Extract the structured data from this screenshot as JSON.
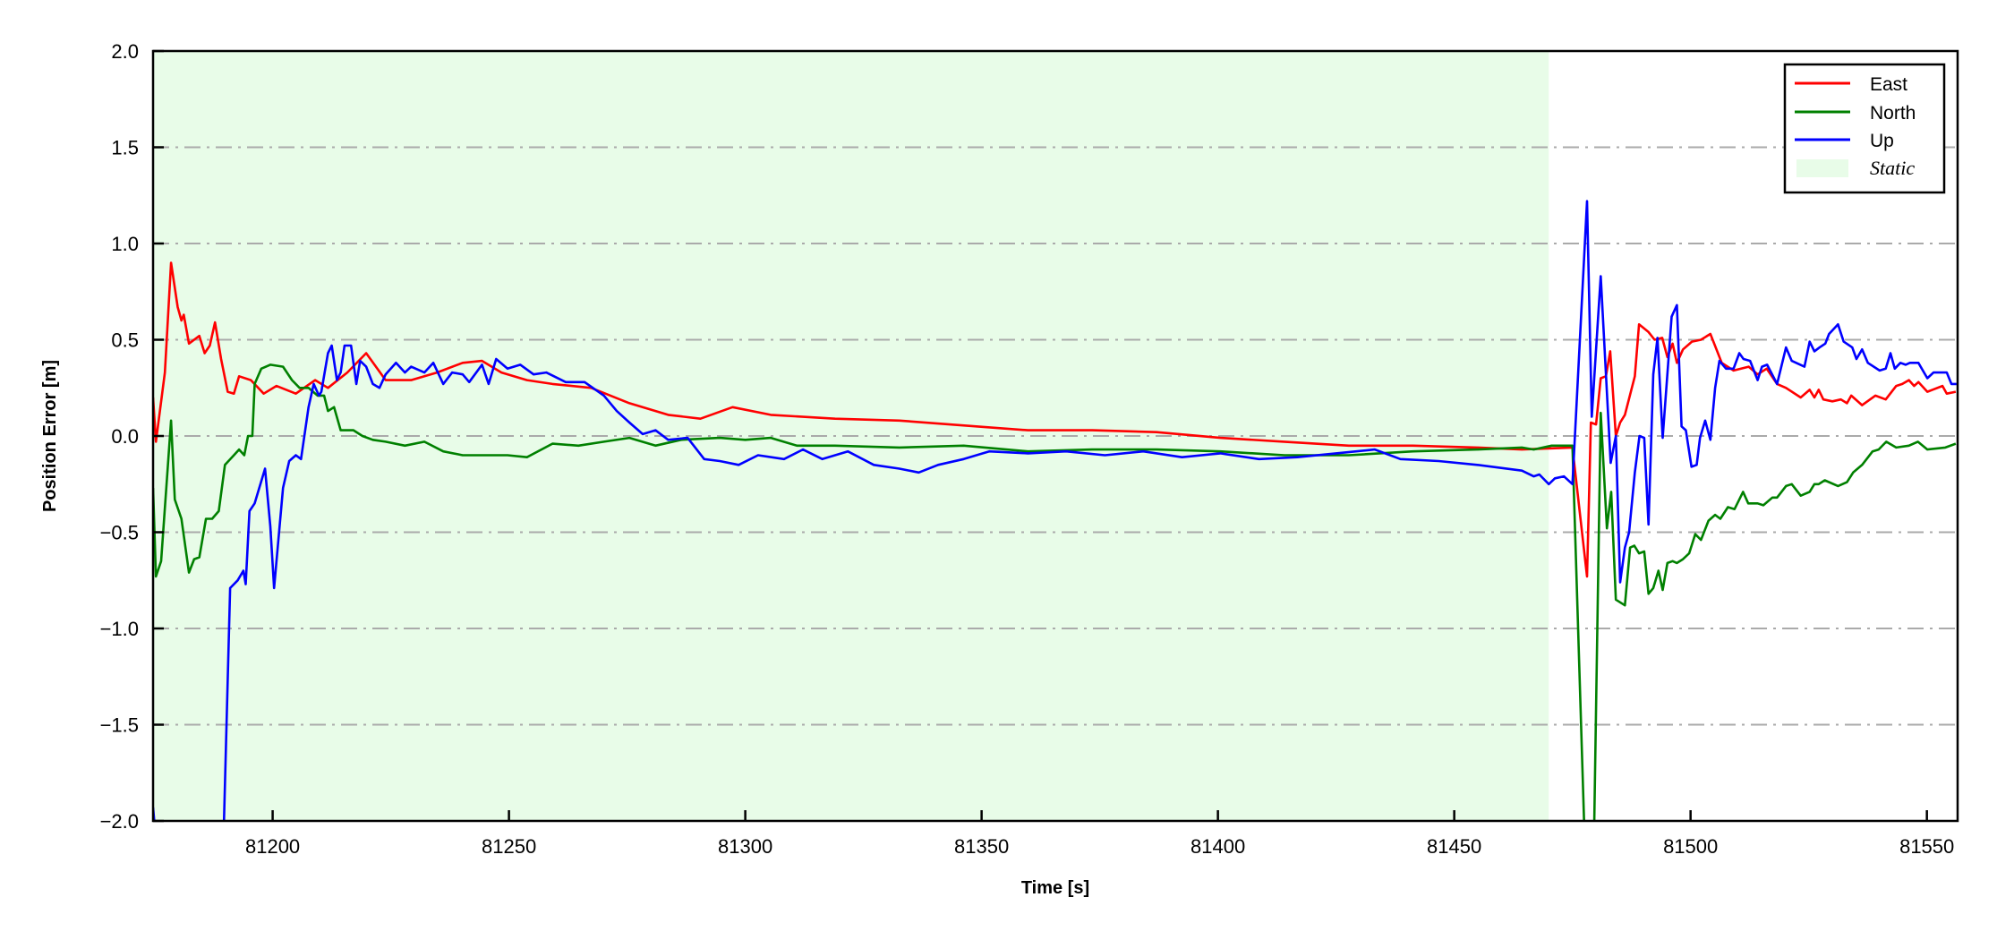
{
  "chart_data": {
    "type": "line",
    "title": "",
    "xlabel": "Time [s]",
    "ylabel": "Position Error [m]",
    "xlim": [
      81174.7,
      81556.5
    ],
    "ylim": [
      -2.0,
      2.0
    ],
    "xticks": [
      81200,
      81250,
      81300,
      81350,
      81400,
      81450,
      81500,
      81550
    ],
    "xtick_labels": [
      "81200",
      "81250",
      "81300",
      "81350",
      "81400",
      "81450",
      "81500",
      "81550"
    ],
    "yticks": [
      -2.0,
      -1.5,
      -1.0,
      -0.5,
      0.0,
      0.5,
      1.0,
      1.5,
      2.0
    ],
    "ytick_labels": [
      "−2.0",
      "−1.5",
      "−1.0",
      "−0.5",
      "0.0",
      "0.5",
      "1.0",
      "1.5",
      "2.0"
    ],
    "grid": "horizontal dash-dot",
    "legend_position": "top-right",
    "shaded_regions": [
      {
        "name": "Static",
        "x": [
          81174.7,
          81470
        ],
        "color": "#e8fce8"
      }
    ],
    "series": [
      {
        "name": "East",
        "color": "#ff0000",
        "x": [
          81174.7,
          81175.3,
          81177.2,
          81178.5,
          81179.9,
          81180.7,
          81181.2,
          81182.3,
          81184.5,
          81185.6,
          81186.7,
          81187.8,
          81189.1,
          81190.5,
          81191.8,
          81192.9,
          81195.4,
          81198.1,
          81200.8,
          81204.9,
          81209,
          81211.7,
          81215.8,
          81219.8,
          81223.9,
          81229.3,
          81234.8,
          81240.2,
          81244.3,
          81248.4,
          81253.8,
          81259.2,
          81267.4,
          81275.5,
          81283.7,
          81290.5,
          81297.3,
          81305.4,
          81319,
          81332.6,
          81348.9,
          81359.8,
          81373.4,
          81387,
          81400.5,
          81414,
          81427.7,
          81441.3,
          81454.9,
          81464.3,
          81475,
          81478.1,
          81478.9,
          81480,
          81481,
          81482.1,
          81483,
          81484.2,
          81485.1,
          81486.1,
          81488.2,
          81489.1,
          81491.1,
          81492.4,
          81494,
          81495.1,
          81496.2,
          81497.1,
          81498.4,
          81500.3,
          81502.2,
          81504.2,
          81506.6,
          81509.1,
          81512.3,
          81514.2,
          81516.1,
          81518.3,
          81520.2,
          81523.3,
          81525.2,
          81526.2,
          81527.1,
          81528.1,
          81530,
          81531.8,
          81533.1,
          81534,
          81536.3,
          81539.1,
          81541.3,
          81543.5,
          81544.8,
          81546.2,
          81547.3,
          81548.2,
          81550.1,
          81553.3,
          81554.2,
          81556.1
        ],
        "y": [
          0.2,
          -0.03,
          0.33,
          0.9,
          0.67,
          0.6,
          0.63,
          0.48,
          0.52,
          0.43,
          0.47,
          0.59,
          0.4,
          0.23,
          0.22,
          0.31,
          0.29,
          0.22,
          0.26,
          0.22,
          0.29,
          0.25,
          0.33,
          0.43,
          0.29,
          0.29,
          0.33,
          0.38,
          0.39,
          0.33,
          0.29,
          0.27,
          0.25,
          0.17,
          0.11,
          0.09,
          0.15,
          0.11,
          0.09,
          0.08,
          0.05,
          0.03,
          0.03,
          0.02,
          -0.01,
          -0.03,
          -0.05,
          -0.05,
          -0.06,
          -0.07,
          -0.06,
          -0.73,
          0.07,
          0.06,
          0.3,
          0.31,
          0.44,
          0.0,
          0.07,
          0.11,
          0.31,
          0.58,
          0.54,
          0.5,
          0.51,
          0.41,
          0.48,
          0.38,
          0.45,
          0.49,
          0.5,
          0.53,
          0.38,
          0.34,
          0.36,
          0.32,
          0.35,
          0.27,
          0.25,
          0.2,
          0.24,
          0.2,
          0.24,
          0.19,
          0.18,
          0.19,
          0.17,
          0.21,
          0.16,
          0.21,
          0.19,
          0.26,
          0.27,
          0.29,
          0.26,
          0.28,
          0.23,
          0.26,
          0.22,
          0.23
        ]
      },
      {
        "name": "North",
        "color": "#008000",
        "x": [
          81174.7,
          81175.3,
          81176.4,
          81178.5,
          81179.3,
          81180.7,
          81182.3,
          81183.4,
          81184.5,
          81185.9,
          81187.2,
          81188.6,
          81189.9,
          81191.8,
          81192.9,
          81194,
          81194.8,
          81195.7,
          81196.2,
          81197.6,
          81199.5,
          81202.2,
          81204.1,
          81205.7,
          81207.6,
          81209.5,
          81210.9,
          81211.7,
          81213,
          81214.4,
          81217.1,
          81219,
          81221.2,
          81223.9,
          81228,
          81232.1,
          81236.1,
          81240.2,
          81245.7,
          81249.7,
          81253.8,
          81259.2,
          81264.7,
          81270.1,
          81275.5,
          81281,
          81286.4,
          81294.6,
          81300,
          81305.4,
          81310.9,
          81319,
          81332.6,
          81346.2,
          81359.8,
          81373.4,
          81387,
          81400.5,
          81414.1,
          81427.7,
          81441.3,
          81454.9,
          81464.3,
          81466.8,
          81470.6,
          81475,
          81478.1,
          81479.3,
          81481,
          81482.3,
          81483.2,
          81484.2,
          81486.1,
          81487.2,
          81488.1,
          81489.1,
          81490.2,
          81491.1,
          81492.1,
          81493.2,
          81494.1,
          81495.1,
          81496.2,
          81497.1,
          81498.4,
          81499.7,
          81501,
          81502.2,
          81503.8,
          81505.2,
          81506.3,
          81507.9,
          81509.3,
          81511.1,
          81512.2,
          81514.2,
          81515.4,
          81517.3,
          81518.3,
          81520.2,
          81521.4,
          81523.3,
          81525.2,
          81526.2,
          81527.1,
          81528.4,
          81531.2,
          81533.1,
          81534.4,
          81536.3,
          81538.5,
          81539.8,
          81541.4,
          81543.5,
          81546.2,
          81548.1,
          81550.1,
          81553.9,
          81556.1
        ],
        "y": [
          -0.27,
          -0.73,
          -0.65,
          0.08,
          -0.33,
          -0.43,
          -0.71,
          -0.64,
          -0.63,
          -0.43,
          -0.43,
          -0.39,
          -0.15,
          -0.1,
          -0.07,
          -0.1,
          0.0,
          0.0,
          0.27,
          0.35,
          0.37,
          0.36,
          0.29,
          0.25,
          0.25,
          0.21,
          0.21,
          0.13,
          0.15,
          0.03,
          0.03,
          0.0,
          -0.02,
          -0.03,
          -0.05,
          -0.03,
          -0.08,
          -0.1,
          -0.1,
          -0.1,
          -0.11,
          -0.04,
          -0.05,
          -0.03,
          -0.01,
          -0.05,
          -0.02,
          -0.01,
          -0.02,
          -0.01,
          -0.05,
          -0.05,
          -0.06,
          -0.05,
          -0.08,
          -0.07,
          -0.07,
          -0.08,
          -0.1,
          -0.1,
          -0.08,
          -0.07,
          -0.06,
          -0.07,
          -0.05,
          -0.05,
          -2.5,
          -2.5,
          0.12,
          -0.48,
          -0.29,
          -0.85,
          -0.88,
          -0.58,
          -0.57,
          -0.61,
          -0.6,
          -0.82,
          -0.79,
          -0.7,
          -0.8,
          -0.66,
          -0.65,
          -0.66,
          -0.64,
          -0.61,
          -0.51,
          -0.54,
          -0.44,
          -0.41,
          -0.43,
          -0.37,
          -0.38,
          -0.29,
          -0.35,
          -0.35,
          -0.36,
          -0.32,
          -0.32,
          -0.26,
          -0.25,
          -0.31,
          -0.29,
          -0.25,
          -0.25,
          -0.23,
          -0.26,
          -0.24,
          -0.19,
          -0.15,
          -0.08,
          -0.07,
          -0.03,
          -0.06,
          -0.05,
          -0.03,
          -0.07,
          -0.06,
          -0.04
        ]
      },
      {
        "name": "Up",
        "color": "#0000ff",
        "x": [
          81174.7,
          81175.5,
          81189.5,
          81191,
          81192.6,
          81193.8,
          81194.3,
          81195.1,
          81196.2,
          81198.4,
          81199.5,
          81200.3,
          81202.2,
          81203.5,
          81204.9,
          81206,
          81207.6,
          81208.7,
          81209.8,
          81210.3,
          81211.7,
          81212.5,
          81213.6,
          81214.4,
          81215.2,
          81216.6,
          81217.7,
          81218.5,
          81219.8,
          81221.2,
          81222.6,
          81223.9,
          81226.1,
          81228,
          81229.3,
          81232.1,
          81234,
          81236.1,
          81238,
          81240.2,
          81241.6,
          81244.3,
          81245.7,
          81247.3,
          81249.7,
          81252.4,
          81255.2,
          81257.9,
          81262,
          81266,
          81270.1,
          81272.8,
          81275.5,
          81278.3,
          81281,
          81283.7,
          81287.8,
          81291.3,
          81294.6,
          81298.6,
          81302.7,
          81308.2,
          81312.2,
          81316.3,
          81321.7,
          81327.2,
          81332.6,
          81336.7,
          81340.8,
          81346.2,
          81351.6,
          81359.8,
          81367.9,
          81376.1,
          81384.2,
          81392.4,
          81400.5,
          81408.7,
          81416.8,
          81425,
          81433.2,
          81438.6,
          81446.7,
          81454.9,
          81464.3,
          81466.8,
          81468,
          81470,
          81471.3,
          81473.2,
          81475,
          81478.1,
          81479.1,
          81481,
          81483.1,
          81484.2,
          81485.1,
          81486.1,
          81487,
          81488.2,
          81489.2,
          81490.2,
          81491.1,
          81492.1,
          81493,
          81494.1,
          81496,
          81497.1,
          81498.1,
          81499,
          81500.2,
          81501.3,
          81502,
          81503.1,
          81504.2,
          81505.2,
          81506.1,
          81507.5,
          81509.1,
          81510.3,
          81511.2,
          81512.6,
          81514.2,
          81515.1,
          81516.2,
          81518.3,
          81520.2,
          81521.4,
          81524.1,
          81525.2,
          81526.2,
          81527.3,
          81528.5,
          81529.3,
          81531.2,
          81532.4,
          81534.2,
          81535.1,
          81536.3,
          81537.5,
          81540,
          81541.3,
          81542.3,
          81543.2,
          81544.4,
          81545.5,
          81546.4,
          81548.2,
          81550.1,
          81551.4,
          81554.2,
          81555.2,
          81556.3
        ],
        "y": [
          -1.93,
          -2.15,
          -2.2,
          -0.79,
          -0.75,
          -0.7,
          -0.77,
          -0.39,
          -0.35,
          -0.17,
          -0.47,
          -0.79,
          -0.27,
          -0.13,
          -0.1,
          -0.12,
          0.15,
          0.27,
          0.21,
          0.23,
          0.43,
          0.47,
          0.29,
          0.33,
          0.47,
          0.47,
          0.27,
          0.39,
          0.36,
          0.27,
          0.25,
          0.32,
          0.38,
          0.33,
          0.36,
          0.33,
          0.38,
          0.27,
          0.33,
          0.32,
          0.28,
          0.37,
          0.27,
          0.4,
          0.35,
          0.37,
          0.32,
          0.33,
          0.28,
          0.28,
          0.21,
          0.13,
          0.07,
          0.01,
          0.03,
          -0.02,
          -0.01,
          -0.12,
          -0.13,
          -0.15,
          -0.1,
          -0.12,
          -0.07,
          -0.12,
          -0.08,
          -0.15,
          -0.17,
          -0.19,
          -0.15,
          -0.12,
          -0.08,
          -0.09,
          -0.08,
          -0.1,
          -0.08,
          -0.11,
          -0.09,
          -0.12,
          -0.11,
          -0.09,
          -0.07,
          -0.12,
          -0.13,
          -0.15,
          -0.18,
          -0.21,
          -0.2,
          -0.25,
          -0.22,
          -0.21,
          -0.25,
          1.22,
          0.1,
          0.83,
          -0.14,
          0.0,
          -0.76,
          -0.58,
          -0.5,
          -0.19,
          0.0,
          -0.01,
          -0.46,
          0.32,
          0.51,
          -0.01,
          0.62,
          0.68,
          0.05,
          0.03,
          -0.16,
          -0.15,
          -0.01,
          0.08,
          -0.02,
          0.25,
          0.39,
          0.35,
          0.35,
          0.43,
          0.4,
          0.39,
          0.29,
          0.36,
          0.37,
          0.27,
          0.46,
          0.39,
          0.36,
          0.49,
          0.44,
          0.46,
          0.48,
          0.53,
          0.58,
          0.49,
          0.46,
          0.4,
          0.45,
          0.38,
          0.34,
          0.35,
          0.43,
          0.35,
          0.38,
          0.37,
          0.38,
          0.38,
          0.3,
          0.33,
          0.33,
          0.27,
          0.27
        ]
      }
    ],
    "legend": {
      "entries": [
        "East",
        "North",
        "Up",
        "Static"
      ]
    }
  }
}
